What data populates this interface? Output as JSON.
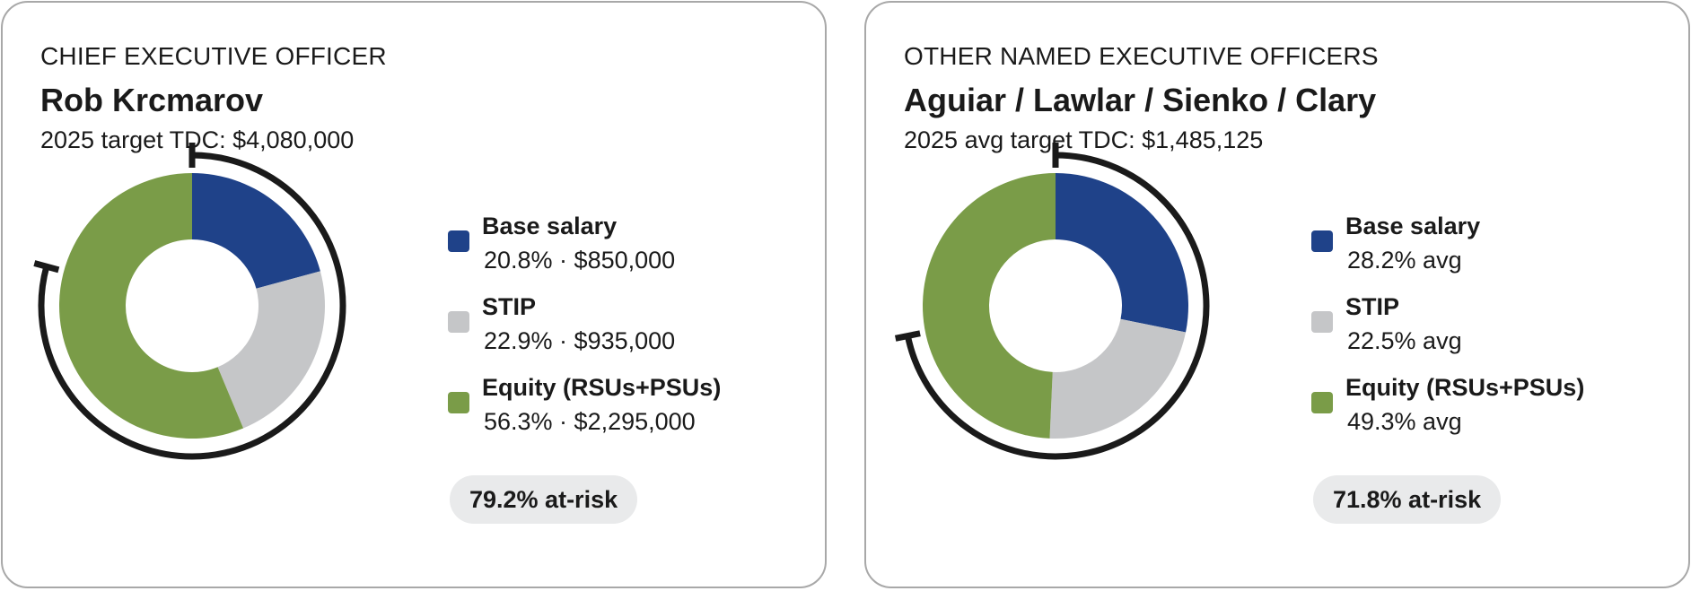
{
  "colors": {
    "base_salary": "#1f4289",
    "stip": "#c5c6c8",
    "equity": "#7a9c48",
    "risk_arc": "#1a1a1a",
    "pill_bg": "#e9eaeb",
    "card_border": "#a8a8a8"
  },
  "ceo": {
    "eyebrow": "CHIEF EXECUTIVE OFFICER",
    "name": "Rob Krcmarov",
    "tdc": "2025 target TDC: $4,080,000",
    "legend": [
      {
        "label": "Base salary",
        "value": "20.8% · $850,000"
      },
      {
        "label": "STIP",
        "value": "22.9% · $935,000"
      },
      {
        "label": "Equity (RSUs+PSUs)",
        "value": "56.3% · $2,295,000"
      }
    ],
    "at_risk": "79.2% at-risk"
  },
  "neo": {
    "eyebrow": "OTHER NAMED EXECUTIVE OFFICERS",
    "name": "Aguiar / Lawlar / Sienko / Clary",
    "tdc": "2025 avg target TDC: $1,485,125",
    "legend": [
      {
        "label": "Base salary",
        "value": "28.2% avg"
      },
      {
        "label": "STIP",
        "value": "22.5% avg"
      },
      {
        "label": "Equity (RSUs+PSUs)",
        "value": "49.3% avg"
      }
    ],
    "at_risk": "71.8% at-risk"
  },
  "chart_data": [
    {
      "type": "pie",
      "categories": [
        "Base salary",
        "STIP",
        "Equity (RSUs+PSUs)"
      ],
      "values": [
        20.8,
        22.9,
        56.3
      ],
      "unit": "%",
      "dollar_values": [
        850000,
        935000,
        2295000
      ],
      "at_risk_percent": 79.2,
      "title": "Rob Krcmarov"
    },
    {
      "type": "pie",
      "categories": [
        "Base salary",
        "STIP",
        "Equity (RSUs+PSUs)"
      ],
      "values": [
        28.2,
        22.5,
        49.3
      ],
      "unit": "%",
      "at_risk_percent": 71.8,
      "title": "Aguiar / Lawlar / Sienko / Clary"
    }
  ]
}
